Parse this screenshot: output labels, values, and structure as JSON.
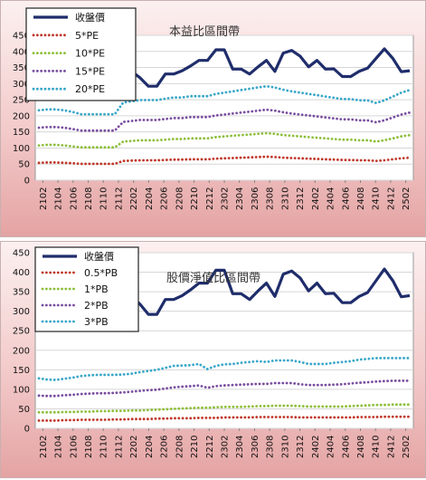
{
  "chart_data": [
    {
      "type": "line",
      "title": "本益比區間帶",
      "ylim": [
        0,
        450
      ],
      "yticks": [
        0,
        50,
        100,
        150,
        200,
        250,
        300,
        350,
        400,
        450
      ],
      "x_labels": [
        "2102",
        "2104",
        "2106",
        "2108",
        "2110",
        "2112",
        "2202",
        "2204",
        "2206",
        "2208",
        "2210",
        "2212",
        "2302",
        "2304",
        "2306",
        "2308",
        "2310",
        "2312",
        "2402",
        "2404",
        "2406",
        "2408",
        "2410",
        "2412",
        "2502"
      ],
      "grid": true,
      "legend_position": "top-left",
      "series": [
        {
          "name": "收盤價",
          "color": "#1f2d6b",
          "style": "solid",
          "values": [
            370,
            388,
            395,
            390,
            400,
            372,
            365,
            368,
            368,
            358,
            345,
            338,
            318,
            292,
            292,
            330,
            330,
            340,
            355,
            372,
            372,
            405,
            405,
            345,
            345,
            330,
            352,
            372,
            338,
            395,
            403,
            385,
            352,
            372,
            345,
            346,
            322,
            322,
            338,
            348,
            378,
            408,
            378,
            337,
            340
          ]
        },
        {
          "name": "5*PE",
          "color": "#c0392b",
          "style": "dotted",
          "values": [
            54,
            55,
            55,
            54,
            53,
            51,
            51,
            51,
            51,
            51,
            60,
            61,
            62,
            62,
            62,
            63,
            64,
            64,
            65,
            65,
            65,
            67,
            68,
            69,
            70,
            71,
            72,
            73,
            72,
            70,
            69,
            68,
            67,
            66,
            65,
            64,
            63,
            63,
            62,
            62,
            60,
            62,
            65,
            68,
            70
          ]
        },
        {
          "name": "10*PE",
          "color": "#8dbf3b",
          "style": "dotted",
          "values": [
            108,
            110,
            110,
            108,
            105,
            102,
            102,
            102,
            102,
            102,
            120,
            122,
            124,
            124,
            124,
            126,
            128,
            128,
            130,
            130,
            130,
            134,
            136,
            138,
            140,
            142,
            144,
            146,
            144,
            140,
            138,
            136,
            134,
            132,
            130,
            128,
            126,
            126,
            124,
            124,
            120,
            124,
            130,
            136,
            140
          ]
        },
        {
          "name": "15*PE",
          "color": "#7a4ea0",
          "style": "dotted",
          "values": [
            163,
            165,
            165,
            163,
            159,
            154,
            154,
            154,
            154,
            154,
            181,
            184,
            187,
            187,
            187,
            190,
            193,
            193,
            196,
            196,
            196,
            201,
            204,
            207,
            210,
            213,
            216,
            219,
            216,
            211,
            207,
            204,
            201,
            198,
            195,
            192,
            189,
            189,
            186,
            186,
            180,
            186,
            195,
            204,
            210
          ]
        },
        {
          "name": "20*PE",
          "color": "#3aa7c9",
          "style": "dotted",
          "values": [
            217,
            220,
            220,
            217,
            212,
            205,
            205,
            205,
            205,
            205,
            241,
            245,
            249,
            249,
            249,
            253,
            257,
            257,
            261,
            261,
            261,
            268,
            272,
            276,
            280,
            284,
            288,
            292,
            288,
            281,
            276,
            272,
            268,
            264,
            260,
            256,
            252,
            252,
            248,
            248,
            240,
            248,
            260,
            272,
            280
          ]
        }
      ]
    },
    {
      "type": "line",
      "title": "股價淨值比區間帶",
      "ylim": [
        0,
        450
      ],
      "yticks": [
        0,
        50,
        100,
        150,
        200,
        250,
        300,
        350,
        400,
        450
      ],
      "x_labels": [
        "2102",
        "2104",
        "2106",
        "2108",
        "2110",
        "2112",
        "2202",
        "2204",
        "2206",
        "2208",
        "2210",
        "2212",
        "2302",
        "2304",
        "2306",
        "2308",
        "2310",
        "2312",
        "2402",
        "2404",
        "2406",
        "2408",
        "2410",
        "2412",
        "2502"
      ],
      "grid": true,
      "legend_position": "top-left",
      "series": [
        {
          "name": "收盤價",
          "color": "#1f2d6b",
          "style": "solid",
          "values": [
            370,
            388,
            395,
            390,
            400,
            372,
            365,
            368,
            368,
            358,
            345,
            338,
            318,
            292,
            292,
            330,
            330,
            340,
            355,
            372,
            372,
            405,
            405,
            345,
            345,
            330,
            352,
            372,
            338,
            395,
            403,
            385,
            352,
            372,
            345,
            346,
            322,
            322,
            338,
            348,
            378,
            408,
            378,
            337,
            340
          ]
        },
        {
          "name": "0.5*PB",
          "color": "#c0392b",
          "style": "dotted",
          "values": [
            20,
            20,
            20,
            21,
            21,
            22,
            22,
            22,
            22,
            23,
            23,
            24,
            24,
            24,
            25,
            25,
            26,
            26,
            26,
            27,
            27,
            27,
            28,
            28,
            28,
            28,
            29,
            29,
            29,
            29,
            29,
            28,
            28,
            28,
            28,
            28,
            28,
            28,
            29,
            29,
            29,
            30,
            30,
            30,
            30
          ]
        },
        {
          "name": "1*PB",
          "color": "#8dbf3b",
          "style": "dotted",
          "values": [
            41,
            41,
            41,
            42,
            42,
            43,
            43,
            44,
            44,
            45,
            45,
            46,
            46,
            47,
            48,
            49,
            50,
            51,
            52,
            53,
            53,
            54,
            55,
            55,
            55,
            56,
            57,
            57,
            58,
            58,
            58,
            57,
            56,
            56,
            56,
            56,
            56,
            57,
            58,
            59,
            60,
            60,
            61,
            61,
            61
          ]
        },
        {
          "name": "2*PB",
          "color": "#7a4ea0",
          "style": "dotted",
          "values": [
            84,
            83,
            83,
            85,
            86,
            88,
            89,
            90,
            90,
            91,
            92,
            94,
            96,
            98,
            99,
            102,
            105,
            107,
            108,
            110,
            104,
            108,
            110,
            111,
            112,
            113,
            114,
            114,
            116,
            116,
            116,
            113,
            111,
            111,
            111,
            112,
            113,
            115,
            117,
            118,
            120,
            121,
            122,
            122,
            122
          ]
        },
        {
          "name": "3*PB",
          "color": "#3aa7c9",
          "style": "dotted",
          "values": [
            128,
            125,
            124,
            127,
            130,
            134,
            136,
            137,
            137,
            137,
            138,
            140,
            144,
            147,
            150,
            155,
            160,
            161,
            162,
            165,
            152,
            160,
            164,
            165,
            168,
            170,
            172,
            170,
            174,
            174,
            174,
            170,
            165,
            165,
            165,
            168,
            170,
            172,
            176,
            178,
            180,
            180,
            180,
            180,
            180
          ]
        }
      ]
    }
  ]
}
